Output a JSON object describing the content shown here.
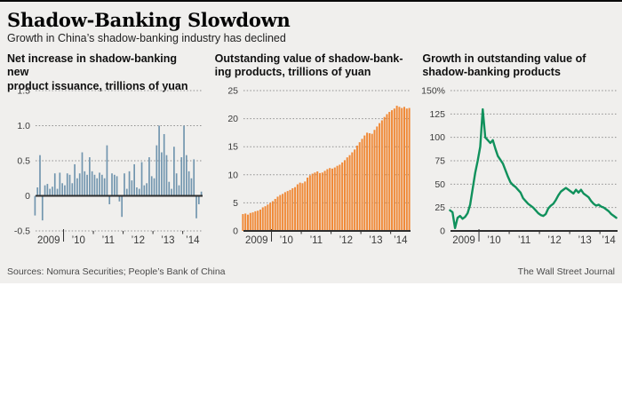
{
  "header": {
    "title": "Shadow-Banking Slowdown",
    "subtitle": "Growth in China’s shadow-banking industry has declined"
  },
  "footer": {
    "sources": "Sources: Nomura Securities; People’s Bank of China",
    "credit": "The Wall Street Journal"
  },
  "colors": {
    "background": "#f0efed",
    "bar_blue": "#7195ae",
    "bar_orange": "#f08a38",
    "line_green": "#10915c",
    "axis": "#2e2e2e",
    "grid": "#8f8f8f",
    "tick_text": "#3a3a3a"
  },
  "chart_data": [
    {
      "type": "bar",
      "title": "Net increase in shadow-banking new\nproduct issuance, trillions of yuan",
      "color_key": "bar_blue",
      "bar_frac": 0.6,
      "ylim": [
        -0.5,
        1.5
      ],
      "y_ticks": [
        1.5,
        1.0,
        0.5,
        0,
        -0.5
      ],
      "y_tick_labels": [
        "1.5",
        "1.0",
        "0.5",
        "0",
        "-0.5"
      ],
      "x_labels": [
        "2009",
        "’10",
        "’11",
        "’12",
        "’13",
        "’14"
      ],
      "x_start_year": 2009,
      "values": [
        -0.28,
        0.12,
        0.58,
        -0.35,
        0.15,
        0.17,
        0.1,
        0.13,
        0.32,
        0.1,
        0.33,
        0.18,
        0.15,
        0.32,
        0.3,
        0.18,
        0.45,
        0.25,
        0.32,
        0.62,
        0.35,
        0.3,
        0.55,
        0.35,
        0.3,
        0.25,
        0.33,
        0.3,
        0.25,
        0.72,
        -0.12,
        0.32,
        0.3,
        0.28,
        -0.08,
        -0.3,
        0.32,
        0.1,
        0.35,
        0.22,
        0.45,
        0.12,
        0.1,
        0.48,
        0.15,
        0.18,
        0.55,
        0.28,
        0.25,
        0.72,
        1.0,
        0.62,
        0.88,
        0.58,
        0.2,
        0.1,
        0.7,
        0.32,
        0.15,
        0.55,
        1.0,
        0.58,
        0.35,
        0.25,
        0.52,
        -0.32,
        -0.12,
        0.06
      ]
    },
    {
      "type": "bar",
      "title": "Outstanding value of shadow-bank-\ning products, trillions of yuan",
      "color_key": "bar_orange",
      "bar_frac": 0.72,
      "ylim": [
        0,
        25
      ],
      "y_ticks": [
        25,
        20,
        15,
        10,
        5,
        0
      ],
      "y_tick_labels": [
        "25",
        "20",
        "15",
        "10",
        "5",
        "0"
      ],
      "x_labels": [
        "2009",
        "’10",
        "’11",
        "’12",
        "’13",
        "’14"
      ],
      "x_start_year": 2009,
      "values": [
        3.0,
        3.1,
        2.9,
        3.2,
        3.3,
        3.5,
        3.6,
        3.8,
        4.2,
        4.4,
        4.7,
        5.0,
        5.3,
        5.7,
        6.1,
        6.4,
        6.6,
        6.9,
        7.1,
        7.3,
        7.6,
        7.8,
        8.3,
        8.6,
        8.5,
        8.8,
        9.5,
        9.9,
        10.2,
        10.4,
        10.6,
        10.3,
        10.4,
        10.7,
        11.0,
        11.2,
        11.1,
        11.3,
        11.6,
        11.8,
        12.2,
        12.6,
        13.1,
        13.5,
        14.0,
        14.5,
        15.2,
        15.8,
        16.4,
        17.0,
        17.5,
        17.4,
        17.3,
        18.0,
        18.6,
        19.2,
        19.7,
        20.3,
        20.8,
        21.2,
        21.5,
        21.8,
        22.3,
        22.1,
        21.9,
        22.1,
        21.8,
        21.9
      ]
    },
    {
      "type": "line",
      "title": "Growth in outstanding value of\nshadow-banking products",
      "color_key": "line_green",
      "ylim": [
        0,
        150
      ],
      "y_ticks": [
        150,
        125,
        100,
        75,
        50,
        25,
        0
      ],
      "y_tick_labels": [
        "150%",
        "125",
        "100",
        "75",
        "50",
        "25",
        "0"
      ],
      "x_labels": [
        "2009",
        "’10",
        "’11",
        "’12",
        "’13",
        "’14"
      ],
      "x_start_year": 2009,
      "values": [
        22,
        20,
        3,
        14,
        16,
        13,
        15,
        19,
        28,
        45,
        62,
        75,
        90,
        130,
        100,
        97,
        94,
        97,
        88,
        80,
        76,
        72,
        65,
        58,
        52,
        49,
        47,
        44,
        41,
        35,
        32,
        29,
        27,
        25,
        22,
        19,
        17,
        16,
        18,
        24,
        27,
        29,
        33,
        38,
        42,
        44,
        46,
        44,
        42,
        40,
        44,
        41,
        44,
        40,
        38,
        36,
        32,
        29,
        27,
        28,
        26,
        25,
        23,
        21,
        18,
        16,
        14
      ]
    }
  ]
}
